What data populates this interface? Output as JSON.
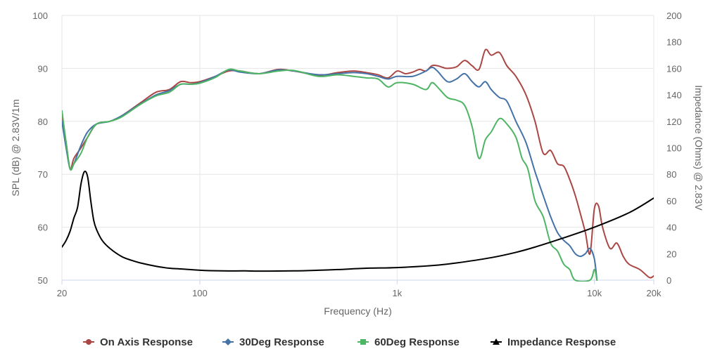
{
  "chart_data": {
    "type": "line",
    "xlabel": "Frequency (Hz)",
    "ylabel": "SPL (dB) @ 2.83V/1m",
    "y2label": "Impedance (Ohms) @ 2.83V",
    "xscale": "log",
    "xlim": [
      20,
      20000
    ],
    "ylim": [
      50,
      100
    ],
    "y2lim": [
      0,
      200
    ],
    "x_ticks": [
      20,
      100,
      1000,
      10000,
      20000
    ],
    "x_tick_labels": [
      "20",
      "100",
      "1k",
      "10k",
      "20k"
    ],
    "y_ticks": [
      50,
      60,
      70,
      80,
      90,
      100
    ],
    "y2_ticks": [
      0,
      20,
      40,
      60,
      80,
      100,
      120,
      140,
      160,
      180,
      200
    ],
    "grid": true,
    "legend_position": "bottom",
    "series": [
      {
        "name": "On Axis Response",
        "axis": "left",
        "color": "#aa4643",
        "marker": "circle",
        "x": [
          20,
          21,
          22,
          23,
          25,
          27,
          30,
          35,
          40,
          50,
          60,
          70,
          80,
          90,
          100,
          120,
          140,
          160,
          200,
          250,
          300,
          400,
          500,
          600,
          700,
          800,
          900,
          1000,
          1100,
          1200,
          1300,
          1400,
          1500,
          1600,
          1700,
          1800,
          2000,
          2200,
          2400,
          2600,
          2800,
          3000,
          3300,
          3600,
          4000,
          4500,
          5000,
          5500,
          6000,
          6500,
          7000,
          7500,
          8000,
          8500,
          9000,
          9500,
          10000,
          10500,
          11000,
          12000,
          13000,
          14000,
          15000,
          17000,
          19000,
          20000
        ],
        "y": [
          81,
          76,
          71,
          73,
          75,
          77,
          79.5,
          80,
          81,
          83.5,
          85.5,
          86,
          87.5,
          87.3,
          87.5,
          88.5,
          89.5,
          89.5,
          89,
          89.8,
          89.5,
          88.7,
          89.2,
          89.5,
          89.2,
          88.8,
          88.2,
          89.5,
          89,
          89.3,
          89.8,
          89.5,
          90.5,
          90.5,
          90.2,
          90,
          90.3,
          91.5,
          90.5,
          89.8,
          93.5,
          92.5,
          93,
          90.5,
          88.5,
          85,
          80,
          74,
          74.5,
          72,
          71.5,
          69,
          66,
          62.5,
          59,
          55,
          63.5,
          64,
          60,
          56,
          57,
          54.5,
          53,
          52,
          50.5,
          50.8
        ]
      },
      {
        "name": "30Deg Response",
        "axis": "left",
        "color": "#4572a7",
        "marker": "diamond",
        "x": [
          20,
          21,
          22,
          23,
          25,
          27,
          30,
          35,
          40,
          50,
          60,
          70,
          80,
          90,
          100,
          120,
          140,
          160,
          200,
          250,
          300,
          400,
          500,
          600,
          700,
          800,
          900,
          1000,
          1200,
          1400,
          1500,
          1600,
          1800,
          2000,
          2200,
          2400,
          2600,
          2800,
          3000,
          3300,
          3600,
          4000,
          4500,
          5000,
          5500,
          6000,
          6500,
          7000,
          7500,
          8000,
          8500,
          9000,
          9500,
          10000,
          10300
        ],
        "y": [
          80,
          75,
          71,
          72,
          75.5,
          78,
          79.5,
          80,
          81,
          83.3,
          85,
          85.8,
          87,
          87,
          87.3,
          88.5,
          89.7,
          89.3,
          89,
          89.7,
          89.5,
          88.8,
          89,
          89.2,
          89,
          88.5,
          88,
          88.5,
          88.5,
          89.5,
          90.2,
          89.5,
          87.5,
          88,
          89,
          87.5,
          86.5,
          87.5,
          86,
          84.5,
          83.8,
          80,
          76,
          70.5,
          66,
          62,
          59,
          57.5,
          56.5,
          55,
          54.5,
          55,
          56,
          54,
          50
        ]
      },
      {
        "name": "60Deg Response",
        "axis": "left",
        "color": "#4db563",
        "marker": "square",
        "x": [
          20,
          21,
          22,
          23,
          25,
          27,
          30,
          35,
          40,
          50,
          60,
          70,
          80,
          90,
          100,
          120,
          140,
          160,
          200,
          250,
          300,
          400,
          500,
          600,
          700,
          800,
          900,
          1000,
          1200,
          1400,
          1500,
          1600,
          1800,
          2000,
          2200,
          2400,
          2600,
          2800,
          3000,
          3300,
          3600,
          4000,
          4300,
          4600,
          5000,
          5500,
          6000,
          6500,
          7000,
          7500,
          8000,
          9500,
          10000,
          10300
        ],
        "y": [
          82,
          76,
          71,
          72,
          74,
          77,
          79.5,
          80,
          80.8,
          83.2,
          84.8,
          85.5,
          87,
          87,
          87.2,
          88.3,
          89.8,
          89.5,
          89,
          89.5,
          89.6,
          88.5,
          88.8,
          88.5,
          88.2,
          88,
          86.5,
          87.3,
          87,
          86,
          87.3,
          86.5,
          84.5,
          84,
          83,
          79,
          73,
          76.5,
          78,
          80.5,
          79.5,
          77,
          73,
          71,
          65,
          62,
          57,
          55.5,
          53,
          52,
          50,
          50,
          52,
          50
        ]
      },
      {
        "name": "Impedance Response",
        "axis": "right",
        "color": "#000000",
        "marker": "triangle",
        "x": [
          20,
          21,
          22,
          23,
          24,
          25,
          26,
          27,
          28,
          29,
          30,
          32,
          35,
          40,
          45,
          50,
          60,
          70,
          80,
          100,
          130,
          170,
          200,
          300,
          400,
          500,
          700,
          1000,
          1500,
          2000,
          3000,
          4000,
          5000,
          7000,
          10000,
          15000,
          20000
        ],
        "y": [
          25,
          30,
          37,
          47,
          55,
          73,
          82,
          78,
          60,
          45,
          38,
          30,
          24,
          18,
          15,
          13,
          10.5,
          9,
          8.5,
          7.5,
          7,
          7,
          6.8,
          7,
          7.5,
          8,
          9,
          9.5,
          11,
          13,
          17,
          21,
          25,
          32,
          40,
          51,
          62
        ]
      }
    ]
  }
}
